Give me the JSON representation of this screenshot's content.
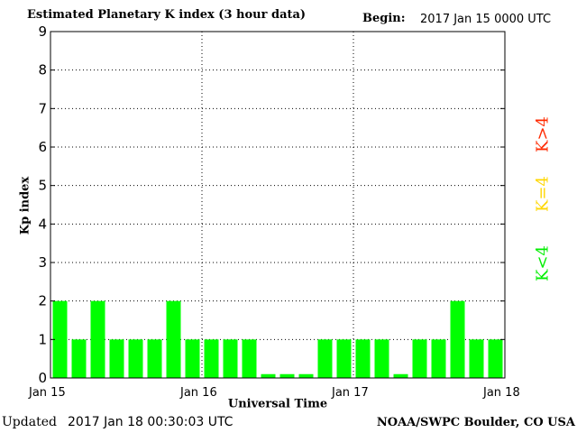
{
  "header": {
    "title": "Estimated Planetary K index (3 hour data)",
    "begin_label": "Begin:",
    "begin_value": "2017 Jan 15 0000 UTC"
  },
  "footer": {
    "updated_label": "Updated",
    "updated_value": "2017 Jan 18 00:30:03 UTC",
    "credit": "NOAA/SWPC Boulder, CO USA"
  },
  "legend": [
    {
      "label": "K>4",
      "color": "#ff2a00"
    },
    {
      "label": "K=4",
      "color": "#ffd700"
    },
    {
      "label": "K<4",
      "color": "#00ee00"
    }
  ],
  "chart_data": {
    "type": "bar",
    "title": "Estimated Planetary K index (3 hour data)",
    "xlabel": "Universal Time",
    "ylabel": "Kp index",
    "ylim": [
      0,
      9
    ],
    "yticks": [
      "0",
      "1",
      "2",
      "3",
      "4",
      "5",
      "6",
      "7",
      "8",
      "9"
    ],
    "xticks": [
      "Jan 15",
      "Jan 16",
      "Jan 17",
      "Jan 18"
    ],
    "grid": "dotted",
    "bar_color": "#00ff00",
    "values": [
      2,
      1,
      2,
      1,
      1,
      1,
      2,
      1,
      1,
      1,
      1,
      0,
      0,
      0,
      1,
      1,
      1,
      1,
      0,
      1,
      1,
      2,
      1,
      1
    ]
  }
}
